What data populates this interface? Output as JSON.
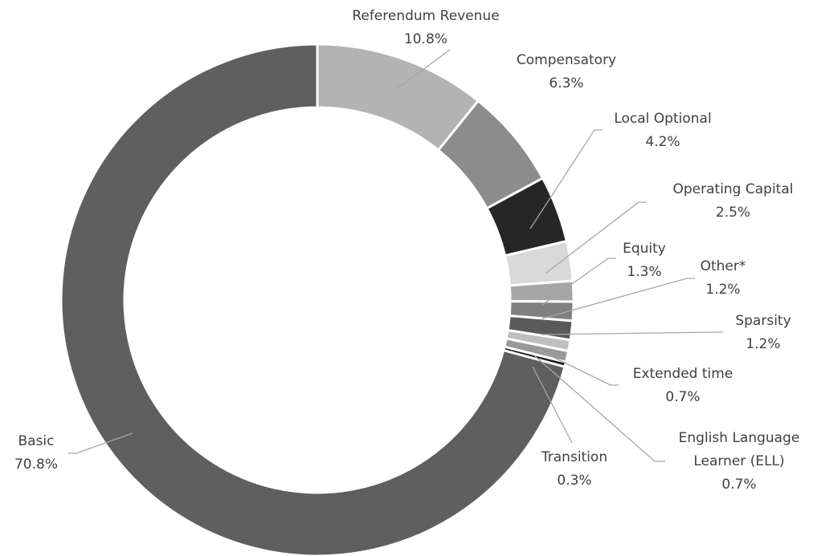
{
  "chart_data": {
    "type": "donut",
    "categories": [
      "Referendum Revenue",
      "Compensatory",
      "Local Optional",
      "Operating Capital",
      "Equity",
      "Other*",
      "Sparsity",
      "Extended time",
      "English Language Learner (ELL)",
      "Transition",
      "Basic"
    ],
    "values": [
      10.8,
      6.3,
      4.2,
      2.5,
      1.3,
      1.2,
      1.2,
      0.7,
      0.7,
      0.3,
      70.8
    ],
    "value_labels": [
      "10.8%",
      "6.3%",
      "4.2%",
      "2.5%",
      "1.3%",
      "1.2%",
      "1.2%",
      "0.7%",
      "0.7%",
      "0.3%",
      "70.8%"
    ],
    "colors": [
      "#b3b3b3",
      "#8c8c8c",
      "#262626",
      "#d9d9d9",
      "#a6a6a6",
      "#808080",
      "#595959",
      "#bfbfbf",
      "#999999",
      "#1a1a1a",
      "#5f5f5f"
    ]
  }
}
